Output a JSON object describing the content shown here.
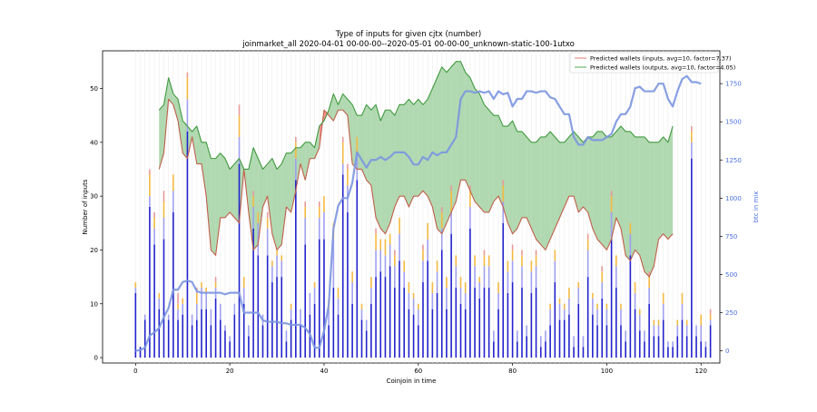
{
  "chart_data": {
    "type": "bar",
    "title": "Type of inputs for given cjtx (number)",
    "subtitle": "joinmarket_all 2020-04-01 00-00-00--2020-05-01 00-00-00_unknown-static-100-1utxo",
    "xlabel": "Coinjoin in time",
    "ylabel": "Number of inputs",
    "ylabel_right": "btc in mix",
    "xlim": [
      -7,
      124
    ],
    "ylim": [
      -1,
      57
    ],
    "ylim_right": [
      -80,
      1965
    ],
    "xticks": [
      0,
      20,
      40,
      60,
      80,
      100,
      120
    ],
    "yticks": [
      0,
      10,
      20,
      30,
      40,
      50
    ],
    "yticks_right": [
      0,
      250,
      500,
      750,
      1000,
      1250,
      1500,
      1750
    ],
    "legend": {
      "placement": "top-right",
      "entries": [
        {
          "label": "Predicted wallets (inputs, avg=10, factor=7.37)",
          "color": "#e8908a"
        },
        {
          "label": "Predicted wallets (outputs, avg=10, factor=4.05)",
          "color": "#6ab56a"
        }
      ]
    },
    "series_colors": {
      "fresh_inputs": "#2222cc",
      "light_inputs": "#a0a0f0",
      "orange_inputs": "#f5b942",
      "red_inputs": "#e89a9a",
      "wallets_inputs_line": "#c0604a",
      "wallets_outputs_line": "#3f9a3f",
      "fill_between": "#a8d5a8",
      "fill_between_red": "#f47f7f",
      "btc_line": "#7b95e0"
    },
    "bars": {
      "x": [
        0,
        1,
        2,
        3,
        4,
        5,
        6,
        7,
        8,
        9,
        10,
        11,
        12,
        13,
        14,
        15,
        16,
        17,
        18,
        19,
        20,
        21,
        22,
        23,
        24,
        25,
        26,
        27,
        28,
        29,
        30,
        31,
        32,
        33,
        34,
        35,
        36,
        37,
        38,
        39,
        40,
        41,
        42,
        43,
        44,
        45,
        46,
        47,
        48,
        49,
        50,
        51,
        52,
        53,
        54,
        55,
        56,
        57,
        58,
        59,
        60,
        61,
        62,
        63,
        64,
        65,
        66,
        67,
        68,
        69,
        70,
        71,
        72,
        73,
        74,
        75,
        76,
        77,
        78,
        79,
        80,
        81,
        82,
        83,
        84,
        85,
        86,
        87,
        88,
        89,
        90,
        91,
        92,
        93,
        94,
        95,
        96,
        97,
        98,
        99,
        100,
        101,
        102,
        103,
        104,
        105,
        106,
        107,
        108,
        109,
        110,
        111,
        112,
        113,
        114,
        115,
        116,
        117,
        118,
        119,
        120,
        121,
        122
      ],
      "fresh": [
        12,
        2,
        7,
        28,
        21,
        9,
        22,
        7,
        27,
        7,
        8,
        42,
        6,
        7,
        9,
        9,
        6,
        11,
        7,
        5,
        3,
        8,
        36,
        10,
        4,
        24,
        19,
        6,
        19,
        14,
        15,
        15,
        3,
        7,
        33,
        6,
        21,
        8,
        10,
        22,
        22,
        6,
        13,
        8,
        34,
        27,
        10,
        33,
        7,
        5,
        10,
        15,
        16,
        15,
        17,
        13,
        18,
        13,
        9,
        8,
        6,
        14,
        18,
        9,
        12,
        20,
        9,
        23,
        13,
        10,
        9,
        24,
        13,
        11,
        13,
        13,
        3,
        9,
        25,
        12,
        14,
        3,
        13,
        4,
        12,
        13,
        2,
        3,
        6,
        14,
        7,
        7,
        8,
        2,
        10,
        2,
        15,
        8,
        6,
        11,
        6,
        22,
        13,
        6,
        3,
        19,
        9,
        5,
        3,
        10,
        4,
        4,
        7,
        2,
        2,
        4,
        7,
        4,
        37,
        4,
        3,
        2,
        6
      ],
      "light": [
        1,
        0,
        1,
        2,
        3,
        2,
        4,
        1,
        4,
        2,
        2,
        6,
        2,
        3,
        4,
        3,
        3,
        2,
        3,
        1,
        1,
        2,
        5,
        3,
        2,
        4,
        6,
        2,
        5,
        3,
        4,
        3,
        2,
        2,
        4,
        3,
        5,
        4,
        3,
        4,
        5,
        3,
        9,
        3,
        2,
        5,
        4,
        5,
        2,
        2,
        3,
        5,
        4,
        4,
        4,
        4,
        5,
        3,
        3,
        3,
        3,
        4,
        4,
        3,
        4,
        4,
        4,
        4,
        4,
        3,
        3,
        4,
        4,
        3,
        4,
        4,
        2,
        3,
        4,
        4,
        4,
        2,
        4,
        2,
        4,
        4,
        2,
        2,
        3,
        4,
        3,
        2,
        3,
        2,
        3,
        2,
        5,
        3,
        3,
        3,
        3,
        5,
        4,
        3,
        2,
        4,
        3,
        3,
        2,
        3,
        2,
        2,
        3,
        1,
        1,
        2,
        3,
        2,
        3,
        2,
        3,
        1,
        1
      ],
      "orange": [
        1,
        0,
        0,
        4,
        2,
        1,
        3,
        0,
        3,
        1,
        1,
        4,
        0,
        2,
        1,
        1,
        0,
        1,
        0,
        0,
        0,
        0,
        4,
        2,
        0,
        2,
        2,
        0,
        2,
        1,
        1,
        1,
        0,
        1,
        3,
        0,
        2,
        0,
        1,
        2,
        3,
        2,
        3,
        2,
        4,
        3,
        2,
        3,
        1,
        0,
        2,
        3,
        2,
        3,
        2,
        2,
        3,
        2,
        2,
        1,
        1,
        2,
        3,
        2,
        2,
        3,
        2,
        4,
        2,
        2,
        2,
        3,
        2,
        1,
        2,
        2,
        0,
        2,
        3,
        2,
        2,
        0,
        2,
        0,
        2,
        2,
        0,
        0,
        1,
        2,
        1,
        1,
        2,
        0,
        1,
        0,
        2,
        1,
        1,
        2,
        1,
        3,
        2,
        1,
        0,
        2,
        2,
        1,
        0,
        2,
        1,
        1,
        2,
        0,
        0,
        1,
        2,
        1,
        2,
        0,
        2,
        0,
        1
      ],
      "red": [
        0,
        0,
        0,
        1,
        1,
        0,
        2,
        0,
        0,
        2,
        0,
        1,
        0,
        1,
        0,
        0,
        0,
        1,
        0,
        0,
        0,
        0,
        2,
        0,
        0,
        1,
        0,
        0,
        1,
        0,
        0,
        0,
        0,
        0,
        1,
        0,
        1,
        0,
        0,
        1,
        0,
        0,
        0,
        0,
        1,
        1,
        0,
        0,
        0,
        0,
        0,
        1,
        0,
        0,
        0,
        1,
        0,
        0,
        0,
        0,
        0,
        1,
        0,
        0,
        0,
        1,
        0,
        1,
        0,
        0,
        0,
        1,
        0,
        0,
        1,
        0,
        0,
        0,
        1,
        0,
        1,
        0,
        1,
        0,
        0,
        1,
        0,
        0,
        0,
        0,
        0,
        0,
        0,
        0,
        0,
        0,
        1,
        0,
        0,
        1,
        0,
        1,
        0,
        0,
        0,
        0,
        0,
        0,
        0,
        1,
        0,
        0,
        0,
        0,
        0,
        0,
        0,
        0,
        1,
        0,
        0,
        0,
        1
      ]
    },
    "wallets_inputs": {
      "x": [
        5,
        6,
        7,
        8,
        9,
        10,
        11,
        12,
        13,
        14,
        15,
        16,
        17,
        18,
        19,
        20,
        21,
        22,
        23,
        24,
        25,
        26,
        27,
        28,
        29,
        30,
        31,
        32,
        33,
        34,
        35,
        36,
        37,
        38,
        39,
        40,
        41,
        42,
        43,
        44,
        45,
        46,
        47,
        48,
        49,
        50,
        51,
        52,
        53,
        54,
        55,
        56,
        57,
        58,
        59,
        60,
        61,
        62,
        63,
        64,
        65,
        66,
        67,
        68,
        69,
        70,
        71,
        72,
        73,
        74,
        75,
        76,
        77,
        78,
        79,
        80,
        81,
        82,
        83,
        84,
        85,
        86,
        87,
        88,
        89,
        90,
        91,
        92,
        93,
        94,
        95,
        96,
        97,
        98,
        99,
        100,
        101,
        102,
        103,
        104,
        105,
        106,
        107,
        108,
        109,
        110,
        111,
        112,
        113,
        114
      ],
      "y": [
        35,
        38,
        48,
        47,
        44,
        38,
        37,
        41,
        36,
        36,
        30,
        20,
        19,
        26,
        26,
        27,
        26,
        25,
        35,
        27,
        20,
        21,
        28,
        30,
        23,
        20,
        21,
        28,
        27,
        31,
        36,
        33,
        37,
        37,
        39,
        46,
        45,
        44,
        46,
        46,
        45,
        36,
        35,
        35,
        33,
        32,
        26,
        24,
        23,
        25,
        28,
        30,
        30,
        28,
        30,
        30,
        31,
        30,
        28,
        24,
        23,
        25,
        27,
        29,
        33,
        33,
        31,
        29,
        28,
        27,
        27,
        29,
        30,
        28,
        25,
        23,
        24,
        26,
        26,
        24,
        22,
        21,
        20,
        22,
        24,
        26,
        28,
        30,
        30,
        27,
        28,
        27,
        24,
        22,
        21,
        20,
        22,
        26,
        24,
        19,
        18,
        20,
        19,
        16,
        15,
        17,
        22,
        23,
        22,
        23
      ]
    },
    "wallets_outputs": {
      "x": [
        5,
        6,
        7,
        8,
        9,
        10,
        11,
        12,
        13,
        14,
        15,
        16,
        17,
        18,
        19,
        20,
        21,
        22,
        23,
        24,
        25,
        26,
        27,
        28,
        29,
        30,
        31,
        32,
        33,
        34,
        35,
        36,
        37,
        38,
        39,
        40,
        41,
        42,
        43,
        44,
        45,
        46,
        47,
        48,
        49,
        50,
        51,
        52,
        53,
        54,
        55,
        56,
        57,
        58,
        59,
        60,
        61,
        62,
        63,
        64,
        65,
        66,
        67,
        68,
        69,
        70,
        71,
        72,
        73,
        74,
        75,
        76,
        77,
        78,
        79,
        80,
        81,
        82,
        83,
        84,
        85,
        86,
        87,
        88,
        89,
        90,
        91,
        92,
        93,
        94,
        95,
        96,
        97,
        98,
        99,
        100,
        101,
        102,
        103,
        104,
        105,
        106,
        107,
        108,
        109,
        110,
        111,
        112,
        113,
        114
      ],
      "y": [
        46,
        47,
        52,
        49,
        48,
        44,
        43,
        42,
        43,
        40,
        40,
        37,
        37,
        38,
        37,
        35,
        36,
        37,
        35,
        35,
        39,
        37,
        35,
        36,
        37,
        35,
        36,
        38,
        38,
        39,
        39,
        40,
        40,
        39,
        43,
        44,
        46,
        49,
        47,
        49,
        48,
        47,
        45,
        45,
        47,
        46,
        47,
        44,
        46,
        46,
        45,
        47,
        47,
        48,
        47,
        48,
        47,
        48,
        50,
        52,
        54,
        53,
        54,
        55,
        55,
        53,
        52,
        50,
        49,
        47,
        46,
        45,
        45,
        43,
        43,
        44,
        42,
        42,
        41,
        40,
        40,
        41,
        41,
        42,
        41,
        40,
        40,
        41,
        42,
        41,
        40,
        41,
        41,
        42,
        42,
        41,
        41,
        42,
        43,
        42,
        42,
        41,
        41,
        41,
        40,
        40,
        40,
        41,
        40,
        43
      ]
    },
    "btc_in_mix": {
      "x": [
        0,
        1,
        2,
        3,
        4,
        5,
        6,
        7,
        8,
        9,
        10,
        11,
        12,
        13,
        14,
        15,
        16,
        17,
        18,
        19,
        20,
        21,
        22,
        23,
        24,
        25,
        26,
        27,
        28,
        29,
        30,
        31,
        32,
        33,
        34,
        35,
        36,
        37,
        38,
        39,
        40,
        41,
        42,
        43,
        44,
        45,
        46,
        47,
        48,
        49,
        50,
        51,
        52,
        53,
        54,
        55,
        56,
        57,
        58,
        59,
        60,
        61,
        62,
        63,
        64,
        65,
        66,
        67,
        68,
        69,
        70,
        71,
        72,
        73,
        74,
        75,
        76,
        77,
        78,
        79,
        80,
        81,
        82,
        83,
        84,
        85,
        86,
        87,
        88,
        89,
        90,
        91,
        92,
        93,
        94,
        95,
        96,
        97,
        98,
        99,
        100,
        101,
        102,
        103,
        104,
        105,
        106,
        107,
        108,
        109,
        110,
        111,
        112,
        113,
        114,
        115,
        116,
        117,
        118,
        119,
        120
      ],
      "y": [
        0,
        5,
        20,
        100,
        120,
        150,
        220,
        280,
        400,
        400,
        450,
        460,
        450,
        390,
        380,
        380,
        380,
        380,
        380,
        370,
        380,
        380,
        380,
        250,
        250,
        250,
        250,
        200,
        190,
        190,
        190,
        180,
        180,
        170,
        170,
        170,
        150,
        110,
        20,
        20,
        130,
        300,
        800,
        950,
        1000,
        1000,
        1100,
        1300,
        1250,
        1200,
        1250,
        1250,
        1270,
        1250,
        1270,
        1300,
        1300,
        1300,
        1270,
        1220,
        1220,
        1270,
        1250,
        1300,
        1280,
        1300,
        1300,
        1350,
        1400,
        1650,
        1700,
        1700,
        1690,
        1700,
        1690,
        1700,
        1650,
        1700,
        1680,
        1690,
        1600,
        1650,
        1650,
        1700,
        1700,
        1690,
        1700,
        1700,
        1660,
        1650,
        1600,
        1550,
        1550,
        1400,
        1350,
        1350,
        1400,
        1380,
        1380,
        1380,
        1400,
        1420,
        1500,
        1550,
        1550,
        1600,
        1720,
        1730,
        1700,
        1700,
        1700,
        1750,
        1750,
        1650,
        1600,
        1700,
        1780,
        1800,
        1760,
        1760,
        1750
      ]
    }
  }
}
